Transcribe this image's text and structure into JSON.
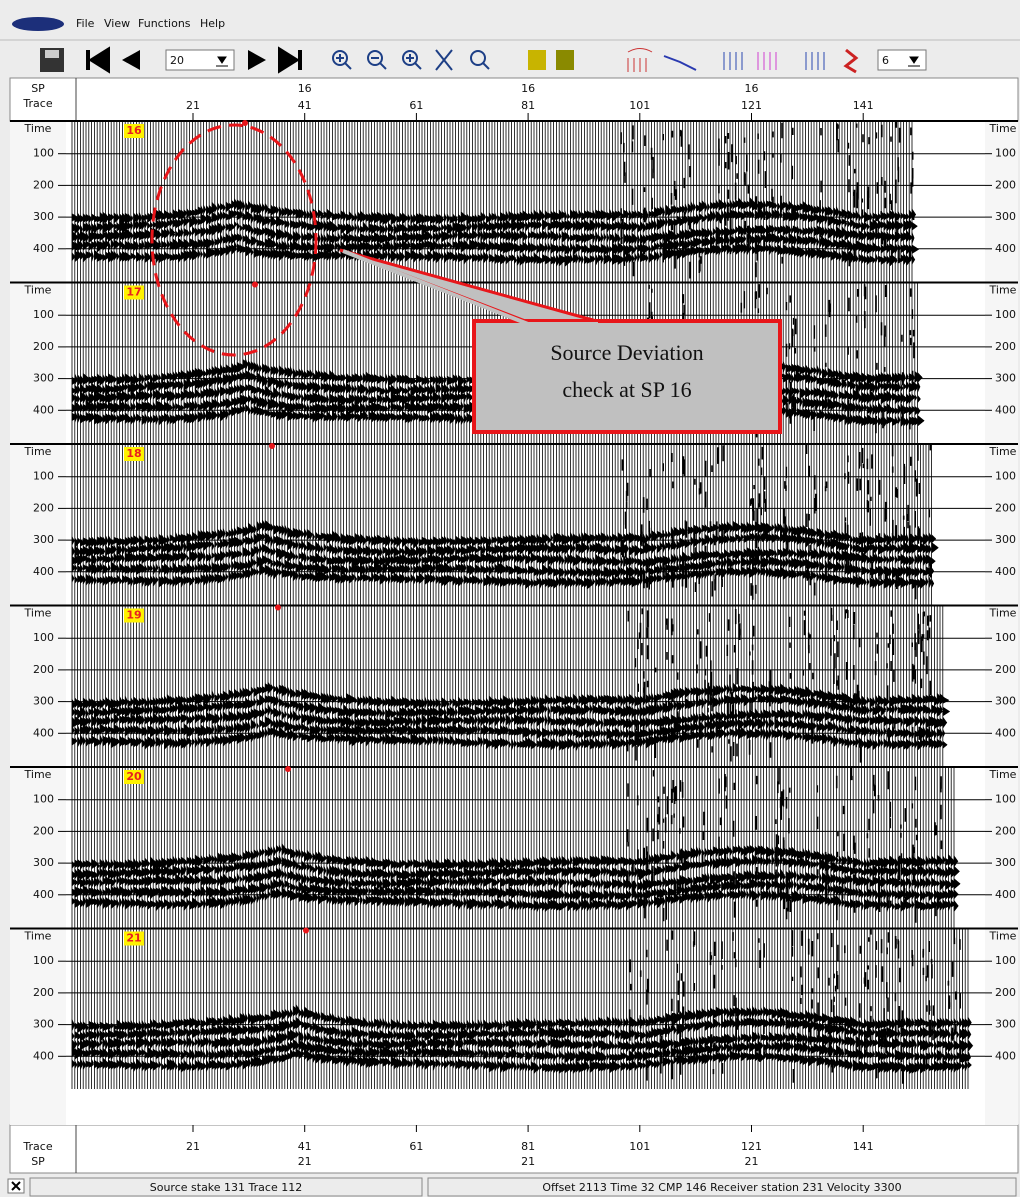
{
  "menu": {
    "items": [
      "File",
      "View",
      "Functions",
      "Help"
    ]
  },
  "toolbar": {
    "page_value": "20",
    "channel_value": "6"
  },
  "top_axis": {
    "sp_label": "SP",
    "trace_label": "Trace",
    "trace_ticks": [
      21,
      41,
      61,
      81,
      101,
      121,
      141
    ],
    "sp_ticks": [
      "16",
      "16",
      "16"
    ]
  },
  "panels": {
    "time_label": "Time",
    "time_ticks": [
      100,
      200,
      300,
      400
    ],
    "shots": [
      "16",
      "17",
      "18",
      "19",
      "20",
      "21"
    ]
  },
  "annotation": {
    "lines": [
      "Source Deviation",
      "check at SP 16"
    ]
  },
  "bottom_axis": {
    "trace_label": "Trace",
    "sp_label": "SP",
    "trace_ticks": [
      21,
      41,
      61,
      81,
      101,
      121,
      141
    ],
    "sp_ticks": [
      "21",
      "21",
      "21"
    ]
  },
  "status_bar": {
    "left": "Source stake 131 Trace 112",
    "right": "Offset 2113 Time 32 CMP 146 Receiver station 231 Velocity 3300"
  }
}
